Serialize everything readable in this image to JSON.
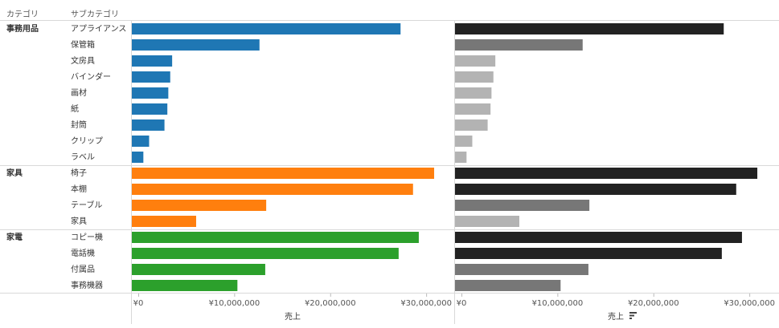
{
  "headers": {
    "category": "カテゴリ",
    "subcategory": "サブカテゴリ"
  },
  "colors": {
    "事務用品": "#1f77b4",
    "家具": "#ff7f0e",
    "家電": "#2ca02c",
    "grid": "#d9d9d9",
    "shade_dark": "#222222",
    "shade_mid": "#777777",
    "shade_light": "#b3b3b3"
  },
  "chart_data": {
    "type": "bar",
    "orientation": "horizontal",
    "xlim": [
      0,
      32000000
    ],
    "ticks": [
      {
        "value": 0,
        "label": "¥0"
      },
      {
        "value": 10000000,
        "label": "¥10,000,000"
      },
      {
        "value": 20000000,
        "label": "¥20,000,000"
      },
      {
        "value": 30000000,
        "label": "¥30,000,000"
      }
    ],
    "xlabel_left": "売上",
    "xlabel_right": "売上",
    "groups": [
      {
        "category": "事務用品",
        "rows": [
          {
            "sub": "アプライアンス",
            "value": 28000000
          },
          {
            "sub": "保管箱",
            "value": 13300000
          },
          {
            "sub": "文房具",
            "value": 4200000
          },
          {
            "sub": "バインダー",
            "value": 4000000
          },
          {
            "sub": "画材",
            "value": 3800000
          },
          {
            "sub": "紙",
            "value": 3700000
          },
          {
            "sub": "封筒",
            "value": 3400000
          },
          {
            "sub": "クリップ",
            "value": 1800000
          },
          {
            "sub": "ラベル",
            "value": 1200000
          }
        ]
      },
      {
        "category": "家具",
        "rows": [
          {
            "sub": "椅子",
            "value": 31500000
          },
          {
            "sub": "本棚",
            "value": 29300000
          },
          {
            "sub": "テーブル",
            "value": 14000000
          },
          {
            "sub": "家具",
            "value": 6700000
          }
        ]
      },
      {
        "category": "家電",
        "rows": [
          {
            "sub": "コピー機",
            "value": 29900000
          },
          {
            "sub": "電話機",
            "value": 27800000
          },
          {
            "sub": "付属品",
            "value": 13900000
          },
          {
            "sub": "事務機器",
            "value": 11000000
          }
        ]
      }
    ]
  }
}
